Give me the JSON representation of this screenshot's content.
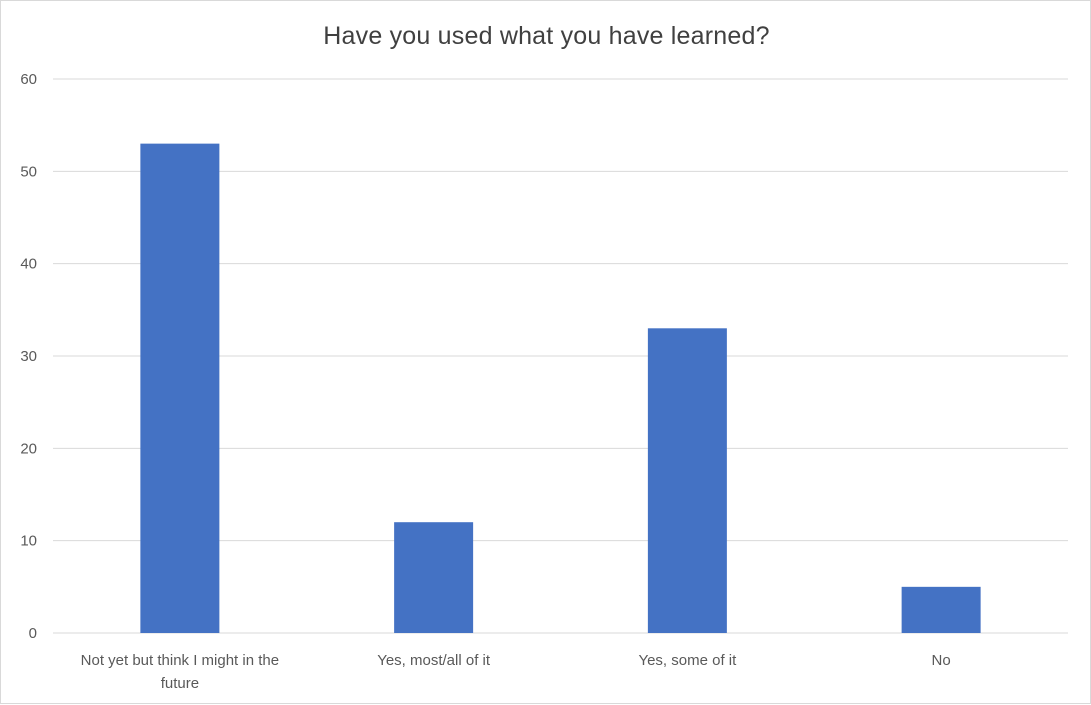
{
  "chart_data": {
    "type": "bar",
    "title": "Have you used what you have learned?",
    "categories": [
      [
        "Not yet but think I might in the",
        "future"
      ],
      [
        "Yes, most/all of it"
      ],
      [
        "Yes, some of it"
      ],
      [
        "No"
      ]
    ],
    "values": [
      53,
      12,
      33,
      5
    ],
    "ylim": [
      0,
      60
    ],
    "yticks": [
      0,
      10,
      20,
      30,
      40,
      50,
      60
    ],
    "grid": true,
    "legend": "none",
    "bar_color": "#4472C4",
    "gridline_color": "#d9d9d9"
  }
}
